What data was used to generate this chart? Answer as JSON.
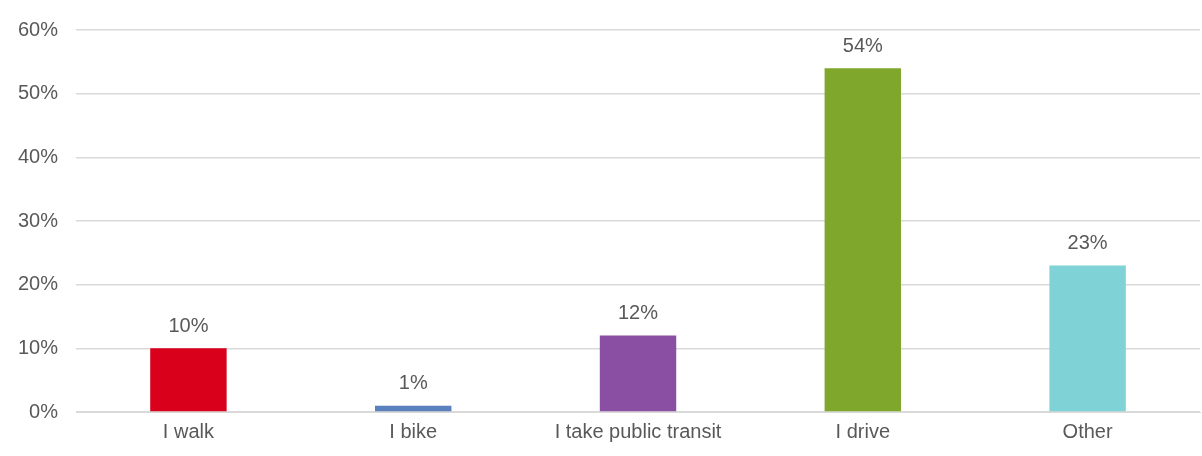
{
  "chart_data": {
    "type": "bar",
    "categories": [
      "I walk",
      "I bike",
      "I take public transit",
      "I drive",
      "Other"
    ],
    "values": [
      10,
      1,
      12,
      54,
      23
    ],
    "colors": [
      "#d9001b",
      "#5a80be",
      "#8a4fa3",
      "#7ea72b",
      "#7fd3d6"
    ],
    "ylim": [
      0,
      60
    ],
    "yticks": [
      {
        "value": 0,
        "label": "0%"
      },
      {
        "value": 10,
        "label": "10%"
      },
      {
        "value": 20,
        "label": "20%"
      },
      {
        "value": 30,
        "label": "30%"
      },
      {
        "value": 40,
        "label": "40%"
      },
      {
        "value": 50,
        "label": "50%"
      },
      {
        "value": 60,
        "label": "60%"
      }
    ],
    "value_labels": [
      "10%",
      "1%",
      "12%",
      "54%",
      "23%"
    ],
    "grid": "y",
    "legend": false
  }
}
